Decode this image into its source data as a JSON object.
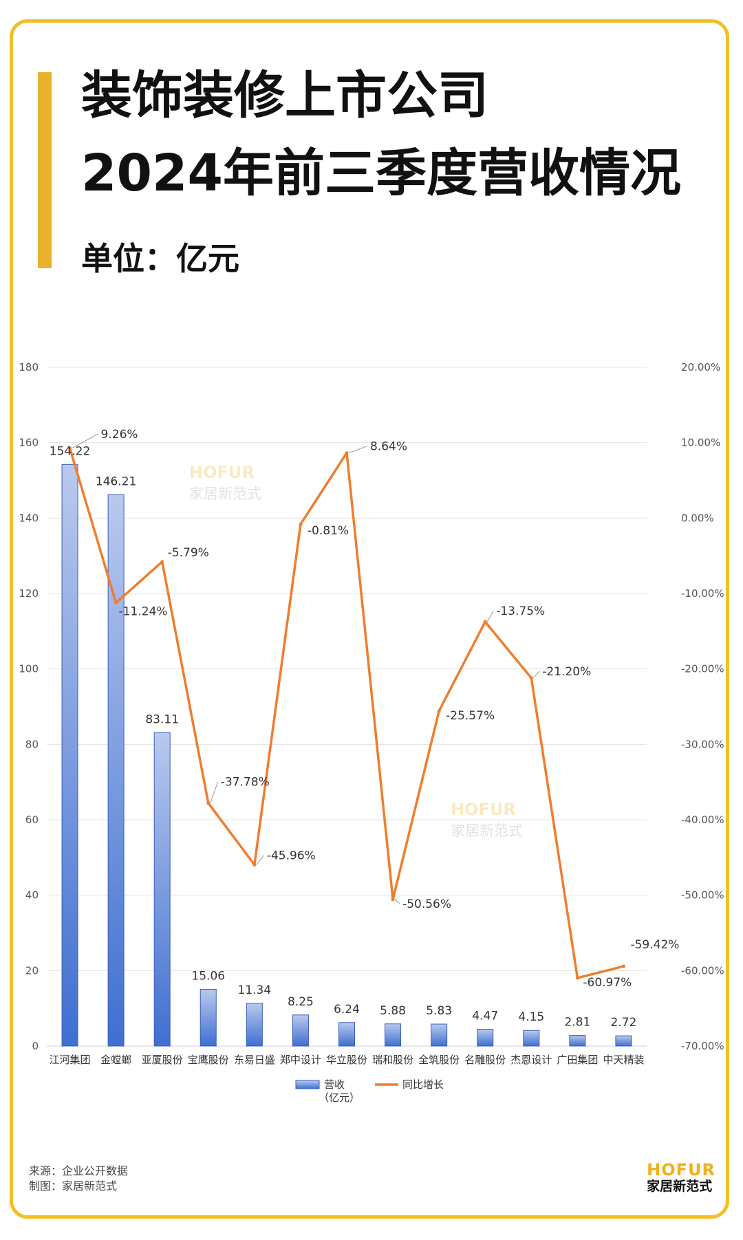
{
  "header": {
    "title_line1": "装饰装修上市公司",
    "title_line2": "2024年前三季度营收情况",
    "unit": "单位：亿元"
  },
  "watermark": {
    "en": "HOFUR",
    "cn": "家居新范式"
  },
  "footer": {
    "source": "来源：企业公开数据",
    "made_by": "制图：家居新范式"
  },
  "logo": {
    "en": "HOFUR",
    "cn": "家居新范式"
  },
  "colors": {
    "bar_top": "#b9c9ee",
    "bar_bottom": "#3f6fd0",
    "line": "#ef7d2e",
    "frame": "#f2c026",
    "accent": "#eab12b",
    "grid": "#e3e3e3"
  },
  "chart_data": {
    "type": "bar",
    "categories": [
      "江河集团",
      "金螳螂",
      "亚厦股份",
      "宝鹰股份",
      "东易日盛",
      "郑中设计",
      "华立股份",
      "瑞和股份",
      "全筑股份",
      "名雕股份",
      "杰恩设计",
      "广田集团",
      "中天精装"
    ],
    "series": [
      {
        "name": "营收（亿元）",
        "type": "bar",
        "axis": "left",
        "values": [
          154.22,
          146.21,
          83.11,
          15.06,
          11.34,
          8.25,
          6.24,
          5.88,
          5.83,
          4.47,
          4.15,
          2.81,
          2.72
        ],
        "labels": [
          "154.22",
          "146.21",
          "83.11",
          "15.06",
          "11.34",
          "8.25",
          "6.24",
          "5.88",
          "5.83",
          "4.47",
          "4.15",
          "2.81",
          "2.72"
        ]
      },
      {
        "name": "同比增长",
        "type": "line",
        "axis": "right",
        "values": [
          9.26,
          -11.24,
          -5.79,
          -37.78,
          -45.96,
          -0.81,
          8.64,
          -50.56,
          -25.57,
          -13.75,
          -21.2,
          -60.97,
          -59.42
        ],
        "labels": [
          "9.26%",
          "-11.24%",
          "-5.79%",
          "-37.78%",
          "-45.96%",
          "-0.81%",
          "8.64%",
          "-50.56%",
          "-25.57%",
          "-13.75%",
          "-21.20%",
          "-60.97%",
          "-59.42%"
        ]
      }
    ],
    "y_left": {
      "range": [
        0,
        180
      ],
      "ticks": [
        "0",
        "20",
        "40",
        "60",
        "80",
        "100",
        "120",
        "140",
        "160",
        "180"
      ]
    },
    "y_right": {
      "range": [
        -70,
        20
      ],
      "ticks": [
        "-70.00%",
        "-60.00%",
        "-50.00%",
        "-40.00%",
        "-30.00%",
        "-20.00%",
        "-10.00%",
        "0.00%",
        "10.00%",
        "20.00%"
      ]
    },
    "legend": {
      "placement": "bottom",
      "items": [
        "营收",
        "（亿元）",
        "同比增长"
      ]
    },
    "grid": true
  }
}
